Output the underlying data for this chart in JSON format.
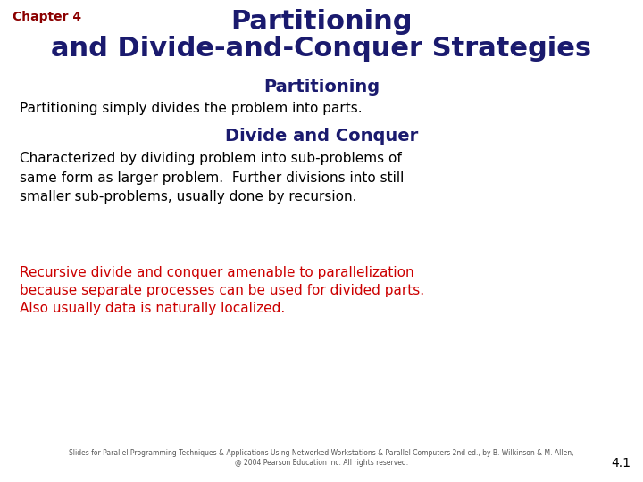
{
  "background_color": "#ffffff",
  "chapter_label": "Chapter 4",
  "chapter_color": "#8b0000",
  "chapter_fontsize": 10,
  "title_line1": "Partitioning",
  "title_line2": "and Divide-and-Conquer Strategies",
  "title_color": "#1a1a6e",
  "title_fontsize1": 22,
  "title_fontsize2": 22,
  "section1_heading": "Partitioning",
  "section1_color": "#1a1a6e",
  "section1_fontsize": 14,
  "section1_body": "Partitioning simply divides the problem into parts.",
  "section1_body_color": "#000000",
  "section1_body_fontsize": 11,
  "section2_heading": "Divide and Conquer",
  "section2_color": "#1a1a6e",
  "section2_fontsize": 14,
  "section2_body": "Characterized by dividing problem into sub-problems of\nsame form as larger problem.  Further divisions into still\nsmaller sub-problems, usually done by recursion.",
  "section2_body_color": "#000000",
  "section2_body_fontsize": 11,
  "red_text_line1": "Recursive divide and conquer amenable to parallelization",
  "red_text_line2": "because separate processes can be used for divided parts.",
  "red_text_line3": "Also usually data is naturally localized.",
  "red_text_color": "#cc0000",
  "red_text_fontsize": 11,
  "footer_line1": "Slides for Parallel Programming Techniques & Applications Using Networked Workstations & Parallel Computers 2nd ed., by B. Wilkinson & M. Allen,",
  "footer_line2": "@ 2004 Pearson Education Inc. All rights reserved.",
  "footer_color": "#555555",
  "footer_fontsize": 5.5,
  "page_number": "4.1",
  "page_number_color": "#000000",
  "page_number_fontsize": 10
}
